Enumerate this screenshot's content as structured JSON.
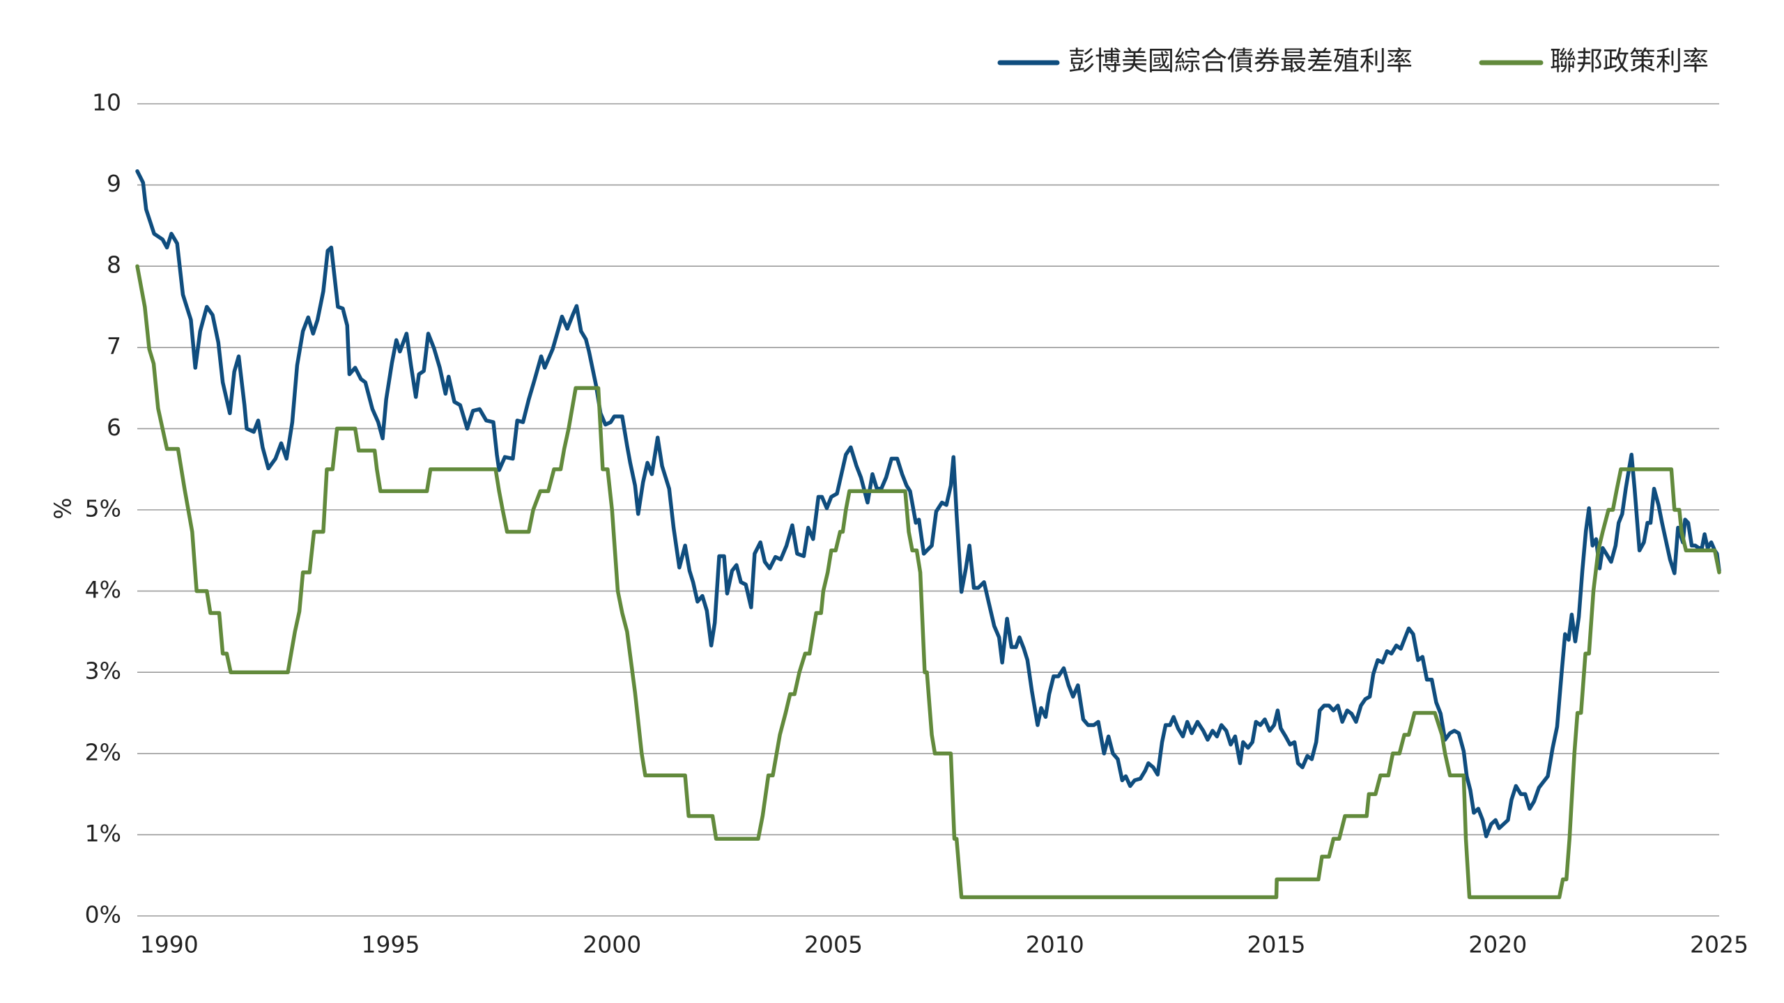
{
  "chart_data": {
    "type": "line",
    "y_label": "%",
    "xlim": [
      1989.28,
      2025
    ],
    "xticks": [
      1990,
      1995,
      2000,
      2005,
      2010,
      2015,
      2020,
      2025
    ],
    "ylim": [
      0,
      10
    ],
    "yticks": [
      {
        "value": 0,
        "label": "0%"
      },
      {
        "value": 1,
        "label": "1%"
      },
      {
        "value": 2,
        "label": "2%"
      },
      {
        "value": 3,
        "label": "3%"
      },
      {
        "value": 4,
        "label": "4%"
      },
      {
        "value": 5,
        "label": "5%"
      },
      6,
      7,
      8,
      9,
      10
    ],
    "grid": true,
    "legend": "top-right",
    "series": [
      {
        "name": "彭博美國綜合債券最差殖利率",
        "color": "#0f4d7e",
        "x": [
          1989.28,
          1989.41,
          1989.48,
          1989.66,
          1989.85,
          1989.95,
          1990.05,
          1990.18,
          1990.31,
          1990.49,
          1990.59,
          1990.7,
          1990.85,
          1990.98,
          1991.11,
          1991.21,
          1991.37,
          1991.47,
          1991.57,
          1991.7,
          1991.75,
          1991.91,
          1992.01,
          1992.11,
          1992.24,
          1992.4,
          1992.53,
          1992.65,
          1992.78,
          1992.89,
          1993.02,
          1993.14,
          1993.25,
          1993.35,
          1993.48,
          1993.58,
          1993.66,
          1993.81,
          1993.92,
          1994.02,
          1994.07,
          1994.2,
          1994.33,
          1994.43,
          1994.59,
          1994.72,
          1994.82,
          1994.9,
          1995.03,
          1995.13,
          1995.21,
          1995.36,
          1995.46,
          1995.57,
          1995.64,
          1995.75,
          1995.85,
          1995.98,
          1996.11,
          1996.24,
          1996.31,
          1996.44,
          1996.57,
          1996.73,
          1996.86,
          1997.01,
          1997.16,
          1997.32,
          1997.4,
          1997.45,
          1997.58,
          1997.76,
          1997.86,
          1997.99,
          1998.12,
          1998.25,
          1998.4,
          1998.48,
          1998.66,
          1998.76,
          1998.87,
          1998.99,
          1999.12,
          1999.2,
          1999.3,
          1999.41,
          1999.48,
          1999.64,
          1999.74,
          1999.85,
          1999.97,
          2000.05,
          2000.15,
          2000.23,
          2000.34,
          2000.41,
          2000.52,
          2000.59,
          2000.7,
          2000.8,
          2000.9,
          2001.03,
          2001.13,
          2001.29,
          2001.39,
          2001.52,
          2001.65,
          2001.75,
          2001.83,
          2001.93,
          2002.04,
          2002.14,
          2002.24,
          2002.32,
          2002.42,
          2002.53,
          2002.6,
          2002.71,
          2002.81,
          2002.91,
          2003.02,
          2003.14,
          2003.22,
          2003.35,
          2003.45,
          2003.56,
          2003.69,
          2003.81,
          2003.94,
          2004.07,
          2004.18,
          2004.33,
          2004.43,
          2004.54,
          2004.66,
          2004.74,
          2004.85,
          2004.95,
          2005.08,
          2005.18,
          2005.28,
          2005.39,
          2005.52,
          2005.62,
          2005.77,
          2005.88,
          2005.98,
          2006.08,
          2006.19,
          2006.31,
          2006.44,
          2006.55,
          2006.65,
          2006.73,
          2006.86,
          2006.93,
          2007.04,
          2007.11,
          2007.22,
          2007.32,
          2007.45,
          2007.55,
          2007.65,
          2007.71,
          2007.78,
          2007.89,
          2007.99,
          2008.07,
          2008.17,
          2008.27,
          2008.4,
          2008.51,
          2008.63,
          2008.74,
          2008.81,
          2008.92,
          2009.02,
          2009.12,
          2009.2,
          2009.3,
          2009.38,
          2009.48,
          2009.61,
          2009.69,
          2009.79,
          2009.87,
          2009.97,
          2010.08,
          2010.2,
          2010.31,
          2010.41,
          2010.52,
          2010.64,
          2010.75,
          2010.88,
          2010.98,
          2011.11,
          2011.21,
          2011.31,
          2011.42,
          2011.52,
          2011.6,
          2011.7,
          2011.8,
          2011.93,
          2012.04,
          2012.11,
          2012.22,
          2012.32,
          2012.42,
          2012.5,
          2012.6,
          2012.68,
          2012.78,
          2012.89,
          2012.99,
          2013.09,
          2013.22,
          2013.35,
          2013.45,
          2013.56,
          2013.66,
          2013.76,
          2013.87,
          2013.97,
          2014.07,
          2014.18,
          2014.25,
          2014.36,
          2014.46,
          2014.54,
          2014.64,
          2014.74,
          2014.85,
          2014.95,
          2015.03,
          2015.1,
          2015.21,
          2015.31,
          2015.41,
          2015.49,
          2015.59,
          2015.7,
          2015.8,
          2015.9,
          2015.98,
          2016.08,
          2016.19,
          2016.29,
          2016.39,
          2016.49,
          2016.6,
          2016.7,
          2016.8,
          2016.91,
          2017.01,
          2017.11,
          2017.19,
          2017.29,
          2017.4,
          2017.5,
          2017.6,
          2017.71,
          2017.81,
          2017.91,
          2017.99,
          2018.09,
          2018.2,
          2018.3,
          2018.4,
          2018.51,
          2018.61,
          2018.71,
          2018.81,
          2018.92,
          2019.02,
          2019.12,
          2019.23,
          2019.3,
          2019.38,
          2019.46,
          2019.56,
          2019.66,
          2019.74,
          2019.85,
          2019.95,
          2020.03,
          2020.13,
          2020.23,
          2020.31,
          2020.41,
          2020.52,
          2020.62,
          2020.72,
          2020.82,
          2020.93,
          2021.03,
          2021.13,
          2021.24,
          2021.34,
          2021.44,
          2021.52,
          2021.6,
          2021.67,
          2021.75,
          2021.83,
          2021.91,
          2021.99,
          2022.06,
          2022.14,
          2022.22,
          2022.3,
          2022.37,
          2022.45,
          2022.56,
          2022.66,
          2022.73,
          2022.81,
          2022.89,
          2022.96,
          2023.02,
          2023.09,
          2023.2,
          2023.3,
          2023.38,
          2023.45,
          2023.53,
          2023.63,
          2023.71,
          2023.79,
          2023.89,
          2023.99,
          2024.07,
          2024.18,
          2024.23,
          2024.3,
          2024.38,
          2024.46,
          2024.54,
          2024.61,
          2024.67,
          2024.74,
          2024.82,
          2024.9,
          2024.95,
          2025.0
        ],
        "values": [
          9.17,
          9.03,
          8.7,
          8.4,
          8.33,
          8.23,
          8.4,
          8.28,
          7.65,
          7.34,
          6.75,
          7.2,
          7.5,
          7.4,
          7.06,
          6.57,
          6.19,
          6.7,
          6.89,
          6.29,
          6.0,
          5.96,
          6.1,
          5.77,
          5.51,
          5.63,
          5.82,
          5.63,
          6.08,
          6.78,
          7.2,
          7.37,
          7.17,
          7.34,
          7.69,
          8.19,
          8.23,
          7.5,
          7.48,
          7.27,
          6.67,
          6.75,
          6.61,
          6.57,
          6.24,
          6.08,
          5.88,
          6.36,
          6.81,
          7.09,
          6.95,
          7.17,
          6.78,
          6.39,
          6.67,
          6.71,
          7.17,
          6.99,
          6.75,
          6.43,
          6.64,
          6.33,
          6.29,
          6.0,
          6.22,
          6.24,
          6.1,
          6.08,
          5.68,
          5.49,
          5.65,
          5.63,
          6.1,
          6.08,
          6.36,
          6.6,
          6.89,
          6.75,
          6.98,
          7.17,
          7.38,
          7.23,
          7.41,
          7.51,
          7.2,
          7.1,
          6.95,
          6.53,
          6.19,
          6.05,
          6.08,
          6.15,
          6.15,
          6.15,
          5.79,
          5.58,
          5.3,
          4.95,
          5.34,
          5.58,
          5.44,
          5.89,
          5.54,
          5.26,
          4.78,
          4.29,
          4.56,
          4.25,
          4.11,
          3.87,
          3.94,
          3.76,
          3.33,
          3.61,
          4.43,
          4.43,
          3.97,
          4.25,
          4.32,
          4.11,
          4.08,
          3.8,
          4.46,
          4.6,
          4.36,
          4.28,
          4.42,
          4.39,
          4.56,
          4.81,
          4.46,
          4.43,
          4.78,
          4.64,
          5.16,
          5.16,
          5.02,
          5.16,
          5.2,
          5.44,
          5.68,
          5.77,
          5.54,
          5.4,
          5.09,
          5.44,
          5.26,
          5.26,
          5.4,
          5.63,
          5.63,
          5.44,
          5.3,
          5.23,
          4.84,
          4.88,
          4.46,
          4.5,
          4.56,
          4.98,
          5.09,
          5.06,
          5.3,
          5.65,
          4.95,
          3.99,
          4.28,
          4.56,
          4.04,
          4.04,
          4.11,
          3.85,
          3.57,
          3.43,
          3.12,
          3.66,
          3.31,
          3.31,
          3.43,
          3.29,
          3.15,
          2.77,
          2.35,
          2.56,
          2.45,
          2.73,
          2.95,
          2.95,
          3.05,
          2.84,
          2.7,
          2.84,
          2.42,
          2.35,
          2.35,
          2.39,
          2.0,
          2.21,
          2.0,
          1.93,
          1.67,
          1.72,
          1.6,
          1.67,
          1.69,
          1.79,
          1.88,
          1.83,
          1.74,
          2.14,
          2.35,
          2.35,
          2.45,
          2.31,
          2.21,
          2.39,
          2.25,
          2.39,
          2.28,
          2.17,
          2.28,
          2.21,
          2.35,
          2.28,
          2.11,
          2.21,
          1.88,
          2.14,
          2.07,
          2.14,
          2.39,
          2.35,
          2.42,
          2.28,
          2.35,
          2.53,
          2.31,
          2.21,
          2.11,
          2.14,
          1.88,
          1.83,
          1.97,
          1.93,
          2.14,
          2.53,
          2.59,
          2.59,
          2.53,
          2.59,
          2.39,
          2.53,
          2.49,
          2.39,
          2.59,
          2.67,
          2.7,
          2.98,
          3.15,
          3.12,
          3.26,
          3.23,
          3.33,
          3.29,
          3.43,
          3.54,
          3.47,
          3.15,
          3.19,
          2.91,
          2.91,
          2.63,
          2.49,
          2.17,
          2.25,
          2.28,
          2.25,
          2.03,
          1.72,
          1.55,
          1.27,
          1.32,
          1.18,
          0.98,
          1.13,
          1.18,
          1.08,
          1.13,
          1.18,
          1.43,
          1.6,
          1.5,
          1.5,
          1.32,
          1.41,
          1.58,
          1.65,
          1.72,
          2.07,
          2.33,
          2.98,
          3.47,
          3.4,
          3.71,
          3.38,
          3.68,
          4.25,
          4.74,
          5.02,
          4.56,
          4.64,
          4.28,
          4.53,
          4.46,
          4.36,
          4.56,
          4.84,
          4.95,
          5.26,
          5.49,
          5.68,
          5.26,
          4.5,
          4.6,
          4.84,
          4.84,
          5.26,
          5.06,
          4.84,
          4.64,
          4.39,
          4.22,
          4.78,
          4.6,
          4.88,
          4.84,
          4.56,
          4.56,
          4.53,
          4.53,
          4.7,
          4.53,
          4.6,
          4.5,
          4.46,
          4.25
        ]
      },
      {
        "name": "聯邦政策利率",
        "color": "#628a3c",
        "x": [
          1989.28,
          1989.45,
          1989.55,
          1989.65,
          1989.75,
          1989.95,
          1990.2,
          1990.35,
          1990.52,
          1990.62,
          1990.85,
          1990.93,
          1991.13,
          1991.21,
          1991.3,
          1991.39,
          1992.68,
          1992.84,
          1992.94,
          1993.02,
          1993.17,
          1993.27,
          1993.48,
          1993.56,
          1993.69,
          1993.79,
          1994.2,
          1994.28,
          1994.64,
          1994.69,
          1994.77,
          1995.82,
          1995.9,
          1997.37,
          1997.45,
          1997.53,
          1997.63,
          1998.12,
          1998.22,
          1998.38,
          1998.56,
          1998.69,
          1998.84,
          1998.92,
          1999.02,
          1999.18,
          1999.69,
          1999.79,
          1999.9,
          2000.0,
          2000.13,
          2000.23,
          2000.34,
          2000.52,
          2000.67,
          2000.75,
          2001.65,
          2001.73,
          2002.27,
          2002.35,
          2003.3,
          2003.4,
          2003.53,
          2003.63,
          2003.79,
          2003.92,
          2004.02,
          2004.12,
          2004.23,
          2004.36,
          2004.46,
          2004.54,
          2004.61,
          2004.72,
          2004.77,
          2004.87,
          2004.95,
          2005.05,
          2005.15,
          2005.21,
          2005.28,
          2005.36,
          2006.62,
          2006.7,
          2006.78,
          2006.88,
          2006.96,
          2007.06,
          2007.11,
          2007.22,
          2007.29,
          2007.65,
          2007.73,
          2007.78,
          2007.89,
          2015.0,
          2015.01,
          2015.95,
          2016.03,
          2016.19,
          2016.29,
          2016.42,
          2016.55,
          2017.04,
          2017.09,
          2017.24,
          2017.35,
          2017.53,
          2017.63,
          2017.78,
          2017.89,
          2017.99,
          2018.12,
          2018.58,
          2018.74,
          2018.81,
          2018.92,
          2019.23,
          2019.28,
          2019.36,
          2021.39,
          2021.47,
          2021.55,
          2021.62,
          2021.73,
          2021.8,
          2021.88,
          2021.98,
          2022.06,
          2022.16,
          2022.27,
          2022.37,
          2022.5,
          2022.6,
          2022.68,
          2022.78,
          2023.92,
          2023.99,
          2024.1,
          2024.15,
          2024.25,
          2024.9,
          2025.0
        ],
        "values": [
          8.0,
          7.5,
          6.98,
          6.8,
          6.25,
          5.75,
          5.75,
          5.25,
          4.73,
          4.0,
          4.0,
          3.73,
          3.73,
          3.23,
          3.23,
          3.0,
          3.0,
          3.5,
          3.75,
          4.23,
          4.23,
          4.73,
          4.73,
          5.5,
          5.5,
          6.0,
          6.0,
          5.73,
          5.73,
          5.5,
          5.23,
          5.23,
          5.5,
          5.5,
          5.23,
          5.0,
          4.73,
          4.73,
          5.0,
          5.23,
          5.23,
          5.5,
          5.5,
          5.75,
          6.0,
          6.5,
          6.5,
          5.5,
          5.5,
          5.0,
          4.0,
          3.73,
          3.5,
          2.75,
          2.0,
          1.73,
          1.73,
          1.23,
          1.23,
          0.95,
          0.95,
          1.23,
          1.73,
          1.73,
          2.23,
          2.5,
          2.73,
          2.73,
          3.0,
          3.23,
          3.23,
          3.5,
          3.73,
          3.73,
          4.0,
          4.23,
          4.5,
          4.5,
          4.73,
          4.73,
          5.0,
          5.23,
          5.23,
          4.73,
          4.5,
          4.5,
          4.23,
          3.0,
          3.0,
          2.23,
          2.0,
          2.0,
          0.95,
          0.95,
          0.23,
          0.23,
          0.45,
          0.45,
          0.73,
          0.73,
          0.95,
          0.95,
          1.23,
          1.23,
          1.5,
          1.5,
          1.73,
          1.73,
          2.0,
          2.0,
          2.23,
          2.23,
          2.5,
          2.5,
          2.23,
          2.0,
          1.73,
          1.73,
          0.95,
          0.23,
          0.23,
          0.45,
          0.45,
          0.95,
          2.0,
          2.5,
          2.5,
          3.23,
          3.23,
          4.0,
          4.5,
          4.73,
          5.0,
          5.0,
          5.23,
          5.5,
          5.5,
          5.0,
          5.0,
          4.73,
          4.5,
          4.5,
          4.23
        ]
      }
    ]
  }
}
